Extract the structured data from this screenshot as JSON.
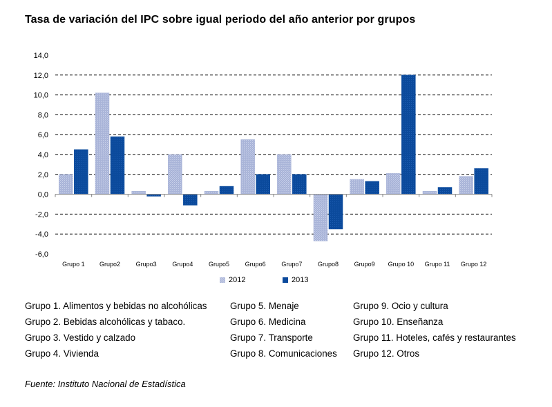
{
  "title": "Tasa de variación del IPC sobre igual periodo del año anterior por grupos",
  "colors": {
    "series_2012": "#a9b4d8",
    "series_2013": "#0b4a9c",
    "gridline": "#000000",
    "axis": "#808080"
  },
  "chart_data": {
    "type": "bar",
    "title": "",
    "xlabel": "",
    "ylabel": "",
    "categories": [
      "Grupo 1",
      "Grupo2",
      "Grupo3",
      "Grupo4",
      "Grupo5",
      "Grupo6",
      "Grupo7",
      "Grupo8",
      "Grupo9",
      "Grupo 10",
      "Grupo 11",
      "Grupo 12"
    ],
    "series": [
      {
        "name": "2012",
        "values": [
          2.0,
          10.2,
          0.3,
          4.0,
          0.3,
          5.5,
          4.0,
          -4.7,
          1.5,
          2.1,
          0.3,
          1.8
        ]
      },
      {
        "name": "2013",
        "values": [
          4.5,
          5.8,
          -0.2,
          -1.1,
          0.8,
          2.0,
          2.0,
          -3.5,
          1.3,
          12.0,
          0.7,
          2.6
        ]
      }
    ],
    "ylim": [
      -6.0,
      14.0
    ],
    "yticks": [
      "14,0",
      "12,0",
      "10,0",
      "8,0",
      "6,0",
      "4,0",
      "2,0",
      "0,0",
      "-2,0",
      "-4,0",
      "-6,0"
    ],
    "grid": true,
    "grid_style": "dashed",
    "legend_position": "bottom"
  },
  "legend": {
    "label_2012": "2012",
    "label_2013": "2013"
  },
  "groups": {
    "col1": [
      "Grupo 1. Alimentos y bebidas no alcohólicas",
      "Grupo 2. Bebidas alcohólicas y  tabaco.",
      "Grupo 3. Vestido y calzado",
      "Grupo 4. Vivienda"
    ],
    "col2": [
      "Grupo 5. Menaje",
      "Grupo 6. Medicina",
      "Grupo 7. Transporte",
      "Grupo 8. Comunicaciones"
    ],
    "col3": [
      "Grupo 9. Ocio y cultura",
      "Grupo 10. Enseñanza",
      "Grupo 11. Hoteles, cafés y restaurantes",
      "Grupo 12. Otros"
    ]
  },
  "source": "Fuente: Instituto Nacional de Estadística"
}
